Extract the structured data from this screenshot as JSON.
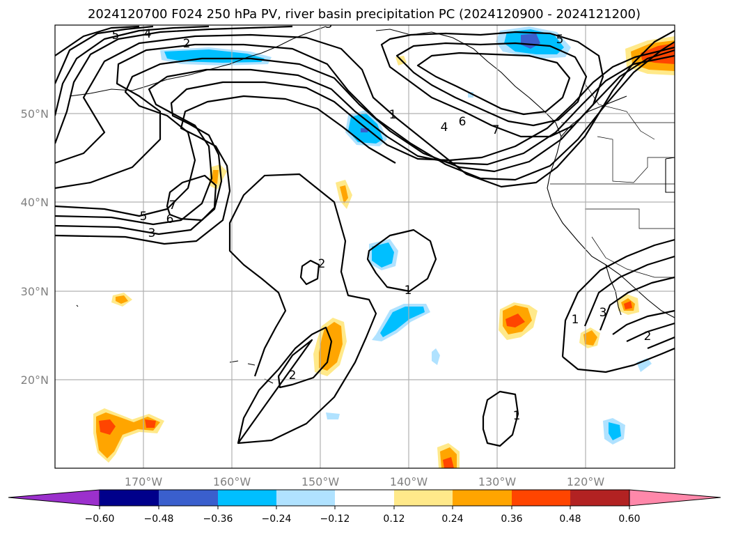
{
  "figure": {
    "title": "2024120700 F024 250 hPa PV, river basin precipitation PC (2024120900 - 2024121200)"
  },
  "axes": {
    "lat_labels": [
      "20°N",
      "30°N",
      "40°N",
      "50°N"
    ],
    "lon_labels": [
      "170°W",
      "160°W",
      "150°W",
      "140°W",
      "130°W",
      "120°W"
    ]
  },
  "colorbar": {
    "tick_labels": [
      "−0.60",
      "−0.48",
      "−0.36",
      "−0.24",
      "−0.12",
      "0.12",
      "0.24",
      "0.36",
      "0.48",
      "0.60"
    ],
    "colors": [
      "#9b30cc",
      "#00008b",
      "#3a5fcd",
      "#00bfff",
      "#b0e2ff",
      "#ffffff",
      "#ffe98a",
      "#ffa500",
      "#ff4500",
      "#b22222",
      "#ff88aa"
    ]
  },
  "contour_labels": [
    "5",
    "4",
    "2",
    "3",
    "1",
    "4",
    "6",
    "7",
    "5",
    "7",
    "6",
    "5",
    "3",
    "2",
    "1",
    "2",
    "1",
    "1",
    "3",
    "2"
  ],
  "shading_colors": {
    "neg_light": "#b0e2ff",
    "neg_mid": "#00bfff",
    "neg_dark": "#3a5fcd",
    "neg_deep": "#9b30cc",
    "pos_light": "#ffe98a",
    "pos_mid": "#ffa500",
    "pos_dark": "#ff4500"
  }
}
